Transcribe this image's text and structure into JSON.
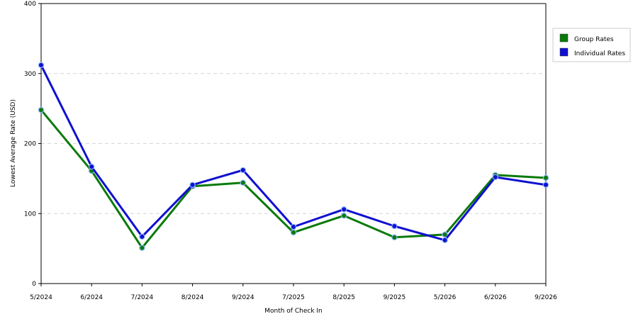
{
  "chart_data": {
    "type": "line",
    "title": "",
    "xlabel": "Month of Check In",
    "ylabel": "Lowest Average Rate (USD)",
    "categories": [
      "5/2024",
      "6/2024",
      "7/2024",
      "8/2024",
      "9/2024",
      "7/2025",
      "8/2025",
      "9/2025",
      "5/2026",
      "6/2026",
      "9/2026"
    ],
    "ylim": [
      0,
      400
    ],
    "yticks": [
      "0",
      "100",
      "200",
      "300",
      "400"
    ],
    "grid": "horizontal dashed",
    "legend_position": "right",
    "series": [
      {
        "name": "Group Rates",
        "color": "#0a7a0a",
        "values": [
          248,
          161,
          51,
          139,
          144,
          73,
          97,
          66,
          70,
          155,
          151
        ]
      },
      {
        "name": "Individual Rates",
        "color": "#1010d0",
        "values": [
          312,
          167,
          67,
          141,
          162,
          81,
          106,
          82,
          62,
          152,
          141
        ]
      }
    ]
  }
}
